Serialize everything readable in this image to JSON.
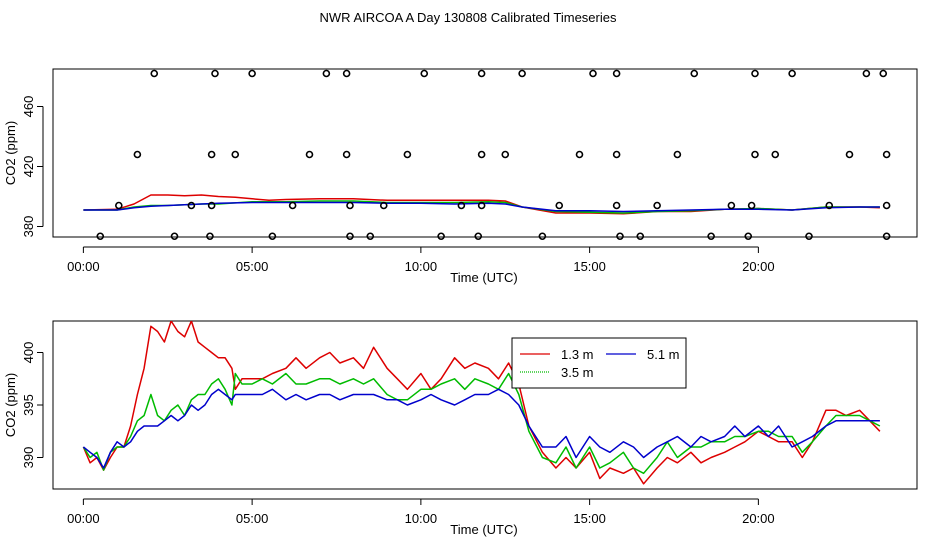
{
  "title": "NWR AIRCOA A  Day 130808  Calibrated Timeseries",
  "colors": {
    "red": "#dd0000",
    "green": "#00bb00",
    "blue": "#0000cc",
    "axis": "#000000"
  },
  "chart_data": [
    {
      "type": "scatter",
      "title": "NWR AIRCOA A  Day 130808  Calibrated Timeseries",
      "xlabel": "Time (UTC)",
      "ylabel": "CO2 (ppm)",
      "xlim": [
        -0.9,
        24.7
      ],
      "ylim": [
        373,
        485
      ],
      "x_ticks": [
        0,
        5,
        10,
        15,
        20
      ],
      "x_tick_labels": [
        "00:00",
        "05:00",
        "10:00",
        "15:00",
        "20:00"
      ],
      "y_ticks": [
        380,
        420,
        460
      ],
      "y_tick_labels": [
        "380",
        "420",
        "460"
      ],
      "series": [
        {
          "name": "1.3 m",
          "color": "#dd0000",
          "x": [
            0,
            1,
            1.5,
            2,
            2.5,
            3,
            3.5,
            4,
            4.5,
            5,
            5.5,
            6,
            7,
            8,
            9,
            10,
            11,
            12,
            12.5,
            13,
            14,
            15,
            16,
            17,
            18,
            19,
            20,
            21,
            22,
            23,
            23.6
          ],
          "y": [
            391,
            391.5,
            395,
            401,
            401,
            400.5,
            401,
            400,
            399.5,
            398.5,
            397.5,
            398,
            398.5,
            398.5,
            397.5,
            397.5,
            397.5,
            397.5,
            397,
            393,
            389,
            389,
            388.5,
            390,
            390,
            391.5,
            392,
            391,
            393,
            393,
            392.5
          ]
        },
        {
          "name": "3.5 m",
          "color": "#00bb00",
          "x": [
            0,
            1,
            1.5,
            2,
            2.5,
            3,
            3.5,
            4,
            5,
            6,
            7,
            8,
            9,
            10,
            11,
            12,
            12.5,
            13,
            14,
            15,
            16,
            17,
            18,
            19,
            20,
            21,
            22,
            23,
            23.6
          ],
          "y": [
            391,
            391,
            393,
            394,
            394,
            394.5,
            395,
            395,
            396.5,
            396.5,
            397,
            397,
            396,
            396,
            396,
            396.5,
            396,
            393,
            390,
            389.5,
            389,
            390,
            390.5,
            391.5,
            392,
            391,
            393,
            393,
            393
          ]
        },
        {
          "name": "5.1 m",
          "color": "#0000cc",
          "x": [
            0,
            1,
            1.5,
            2,
            3,
            4,
            5,
            6,
            7,
            8,
            9,
            10,
            11,
            12,
            12.5,
            13,
            14,
            15,
            16,
            17,
            18,
            19,
            20,
            21,
            22,
            23,
            23.6
          ],
          "y": [
            391,
            391,
            392.5,
            393.5,
            394.5,
            395.5,
            396,
            396,
            396,
            396,
            395.5,
            395.5,
            395,
            395.5,
            395,
            393,
            390.5,
            390.5,
            390,
            390.5,
            391,
            391.5,
            391.5,
            391,
            392.5,
            393,
            393
          ]
        }
      ],
      "outlier_points": {
        "x": [
          2.1,
          3.9,
          5.0,
          7.2,
          7.8,
          10.1,
          11.8,
          13.0,
          15.1,
          15.8,
          18.1,
          19.9,
          21.0,
          23.2,
          23.7,
          1.6,
          3.8,
          4.5,
          6.7,
          7.8,
          9.6,
          11.8,
          12.5,
          14.7,
          15.8,
          17.6,
          19.9,
          20.5,
          22.7,
          23.8,
          1.05,
          3.2,
          3.8,
          6.2,
          7.9,
          8.9,
          11.2,
          11.8,
          14.1,
          15.8,
          17.0,
          19.2,
          19.8,
          22.1,
          23.8,
          0.5,
          2.7,
          3.75,
          5.6,
          7.9,
          8.5,
          10.6,
          11.7,
          13.6,
          15.9,
          16.5,
          18.6,
          19.7,
          21.5,
          23.8
        ],
        "y": [
          482,
          482,
          482,
          482,
          482,
          482,
          482,
          482,
          482,
          482,
          482,
          482,
          482,
          482,
          482,
          428,
          428,
          428,
          428,
          428,
          428,
          428,
          428,
          428,
          428,
          428,
          428,
          428,
          428,
          428,
          394,
          394,
          394,
          394,
          394,
          394,
          394,
          394,
          394,
          394,
          394,
          394,
          394,
          394,
          394,
          373.5,
          373.5,
          373.5,
          373.5,
          373.5,
          373.5,
          373.5,
          373.5,
          373.5,
          373.5,
          373.5,
          373.5,
          373.5,
          373.5,
          373.5
        ]
      }
    },
    {
      "type": "line",
      "xlabel": "Time (UTC)",
      "ylabel": "CO2 (ppm)",
      "xlim": [
        -0.9,
        24.7
      ],
      "ylim": [
        387,
        403
      ],
      "x_ticks": [
        0,
        5,
        10,
        15,
        20
      ],
      "x_tick_labels": [
        "00:00",
        "05:00",
        "10:00",
        "15:00",
        "20:00"
      ],
      "y_ticks": [
        390,
        395,
        400
      ],
      "y_tick_labels": [
        "390",
        "395",
        "400"
      ],
      "legend": {
        "position": "top-center",
        "entries": [
          "1.3 m",
          "5.1 m",
          "3.5 m"
        ]
      },
      "series": [
        {
          "name": "1.3 m",
          "color": "#dd0000",
          "x": [
            0,
            0.2,
            0.4,
            0.6,
            0.8,
            1,
            1.2,
            1.4,
            1.6,
            1.8,
            2,
            2.2,
            2.4,
            2.6,
            2.8,
            3,
            3.2,
            3.4,
            3.6,
            3.8,
            4,
            4.2,
            4.4,
            4.5,
            4.7,
            5,
            5.3,
            5.6,
            6,
            6.3,
            6.6,
            7,
            7.3,
            7.6,
            8,
            8.3,
            8.6,
            9,
            9.3,
            9.6,
            10,
            10.3,
            10.6,
            11,
            11.3,
            11.6,
            12,
            12.3,
            12.6,
            12.9,
            13.2,
            13.6,
            14,
            14.3,
            14.6,
            15,
            15.3,
            15.6,
            16,
            16.3,
            16.6,
            17,
            17.3,
            17.6,
            18,
            18.3,
            18.6,
            19,
            19.3,
            19.6,
            20,
            20.3,
            20.6,
            21,
            21.3,
            21.6,
            22,
            22.3,
            22.6,
            23,
            23.3,
            23.6
          ],
          "y": [
            391,
            389.5,
            390,
            388.8,
            390,
            391,
            391,
            393,
            396,
            398.5,
            402.5,
            402,
            401,
            403,
            402,
            401.5,
            403,
            401,
            400.5,
            400,
            399.5,
            399.5,
            398.5,
            396.5,
            397.5,
            397.5,
            397.5,
            398,
            398.5,
            399.5,
            398.5,
            399.5,
            400,
            399,
            399.5,
            398.5,
            400.5,
            398.5,
            397.5,
            396.5,
            398,
            396.5,
            397.5,
            399.5,
            398.5,
            399,
            398.5,
            397.5,
            399,
            397,
            393,
            390.5,
            389,
            390,
            389,
            390.5,
            388,
            389,
            388.5,
            389,
            387.5,
            389,
            390,
            389.5,
            390.5,
            389.5,
            390,
            390.5,
            391,
            391.5,
            392.5,
            392,
            391.5,
            391.5,
            390,
            391.5,
            394.5,
            394.5,
            394,
            394.5,
            393.5,
            392.5
          ]
        },
        {
          "name": "3.5 m",
          "color": "#00bb00",
          "x": [
            0,
            0.2,
            0.4,
            0.6,
            0.8,
            1,
            1.2,
            1.4,
            1.6,
            1.8,
            2,
            2.2,
            2.4,
            2.6,
            2.8,
            3,
            3.2,
            3.4,
            3.6,
            3.8,
            4,
            4.2,
            4.4,
            4.5,
            4.7,
            5,
            5.3,
            5.6,
            6,
            6.3,
            6.6,
            7,
            7.3,
            7.6,
            8,
            8.3,
            8.6,
            9,
            9.3,
            9.6,
            10,
            10.3,
            10.6,
            11,
            11.3,
            11.6,
            12,
            12.3,
            12.6,
            12.9,
            13.2,
            13.6,
            14,
            14.3,
            14.6,
            15,
            15.3,
            15.6,
            16,
            16.3,
            16.6,
            17,
            17.3,
            17.6,
            18,
            18.3,
            18.6,
            19,
            19.3,
            19.6,
            20,
            20.3,
            20.6,
            21,
            21.3,
            21.6,
            22,
            22.3,
            22.6,
            23,
            23.3,
            23.6
          ],
          "y": [
            391,
            390,
            390.5,
            388.8,
            390.5,
            391,
            391,
            392,
            393.5,
            394,
            396,
            394,
            393.5,
            394.5,
            395,
            394,
            395.5,
            396,
            396,
            397,
            397.5,
            396.5,
            395,
            398,
            397,
            397,
            397.5,
            397,
            398,
            397,
            397,
            397.5,
            397.5,
            397,
            397.5,
            397,
            397.5,
            396,
            395.5,
            395.5,
            396.5,
            396.5,
            397,
            397.5,
            396.5,
            397.5,
            397,
            396.5,
            398,
            396,
            392.5,
            390,
            389.5,
            391,
            389,
            391,
            389,
            389.5,
            390.5,
            389,
            388.5,
            390,
            391.5,
            390,
            391,
            391,
            391.5,
            391.5,
            392,
            392,
            392.5,
            392.5,
            392,
            392,
            390.5,
            391.5,
            393,
            394,
            394,
            394,
            393.5,
            393
          ]
        },
        {
          "name": "5.1 m",
          "color": "#0000cc",
          "x": [
            0,
            0.2,
            0.4,
            0.6,
            0.8,
            1,
            1.2,
            1.4,
            1.6,
            1.8,
            2,
            2.2,
            2.4,
            2.6,
            2.8,
            3,
            3.2,
            3.4,
            3.6,
            3.8,
            4,
            4.2,
            4.4,
            4.5,
            4.7,
            5,
            5.3,
            5.6,
            6,
            6.3,
            6.6,
            7,
            7.3,
            7.6,
            8,
            8.3,
            8.6,
            9,
            9.3,
            9.6,
            10,
            10.3,
            10.6,
            11,
            11.3,
            11.6,
            12,
            12.3,
            12.6,
            12.9,
            13.2,
            13.6,
            14,
            14.3,
            14.6,
            15,
            15.3,
            15.6,
            16,
            16.3,
            16.6,
            17,
            17.3,
            17.6,
            18,
            18.3,
            18.6,
            19,
            19.3,
            19.6,
            20,
            20.3,
            20.6,
            21,
            21.3,
            21.6,
            22,
            22.3,
            22.6,
            23,
            23.3,
            23.6
          ],
          "y": [
            391,
            390.5,
            390,
            389,
            390.5,
            391.5,
            391,
            391.5,
            392.5,
            393,
            393,
            393,
            393.5,
            394,
            393.5,
            394,
            395,
            394.5,
            395,
            396,
            396.5,
            396,
            395.5,
            396,
            396,
            396,
            396,
            396.5,
            395.5,
            396,
            395.5,
            396,
            396,
            395.5,
            396,
            396,
            396,
            395.5,
            395.5,
            395,
            395.5,
            396,
            395.5,
            395,
            395.5,
            396,
            396,
            396.5,
            396,
            395,
            393,
            391,
            391,
            392,
            390,
            392,
            391,
            390.5,
            391.5,
            391,
            390,
            391,
            391.5,
            392,
            391,
            392,
            391.5,
            392,
            393,
            392,
            393,
            392,
            393,
            391,
            391.5,
            392,
            393,
            393.5,
            393.5,
            393.5,
            393.5,
            393.5
          ]
        }
      ]
    }
  ]
}
